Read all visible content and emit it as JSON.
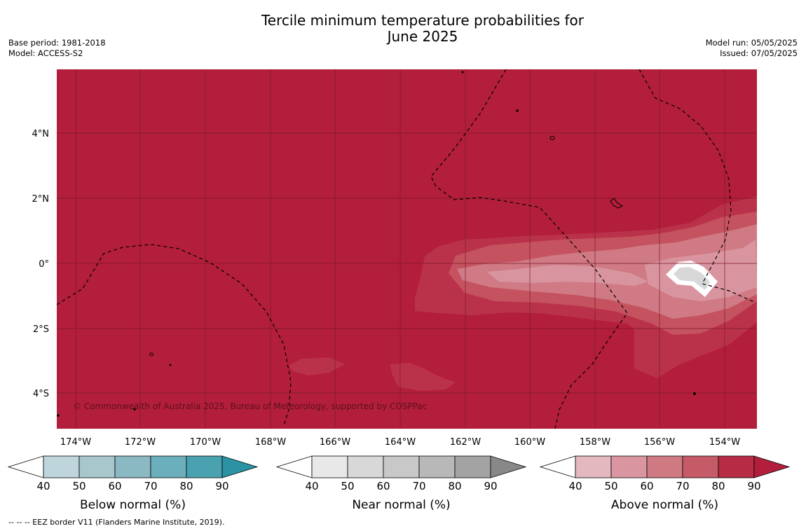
{
  "title": "Tercile minimum temperature probabilities for\nJune 2025",
  "base_period": "Base period: 1981-2018",
  "model": "Model: ACCESS-S2",
  "model_run": "Model run: 05/05/2025",
  "issued": "Issued: 07/05/2025",
  "copyright": "© Commonwealth of Australia 2025, Bureau of Meteorology, supported by COSPPac",
  "footnote": "--  --  -- EEZ border V11 (Flanders Marine Institute, 2019).",
  "lat_labels": [
    "4°N",
    "2°N",
    "0°",
    "2°S",
    "4°S"
  ],
  "lon_labels": [
    "174°W",
    "172°W",
    "170°W",
    "168°W",
    "166°W",
    "164°W",
    "162°W",
    "160°W",
    "158°W",
    "156°W",
    "154°W"
  ],
  "legend": [
    {
      "label": "Below normal (%)",
      "ticks": [
        "40",
        "50",
        "60",
        "70",
        "80",
        "90"
      ],
      "colors": [
        "#ffffff",
        "#bfd5dc",
        "#a7c7cd",
        "#8ab8c3",
        "#6aafbb",
        "#4aa2b1",
        "#2b93a4"
      ]
    },
    {
      "label": "Near normal (%)",
      "ticks": [
        "40",
        "50",
        "60",
        "70",
        "80",
        "90"
      ],
      "colors": [
        "#ffffff",
        "#e8e8e8",
        "#d8d8d8",
        "#c8c8c8",
        "#b8b8b8",
        "#a3a3a3",
        "#888888"
      ]
    },
    {
      "label": "Above normal (%)",
      "ticks": [
        "40",
        "50",
        "60",
        "70",
        "80",
        "90"
      ],
      "colors": [
        "#ffffff",
        "#e3b8bf",
        "#da96a0",
        "#cf7a83",
        "#c65b68",
        "#b72c44",
        "#b21e3b"
      ]
    }
  ],
  "map_colors": {
    "background": "#b21e3b",
    "above_80": "#ba3249",
    "above_70": "#c5525f",
    "above_60": "#cf7a85",
    "above_50": "#d9959f",
    "near_normal": "#d8d8d8",
    "gridline": "#7a1a2a",
    "eez_line": "#000000"
  }
}
